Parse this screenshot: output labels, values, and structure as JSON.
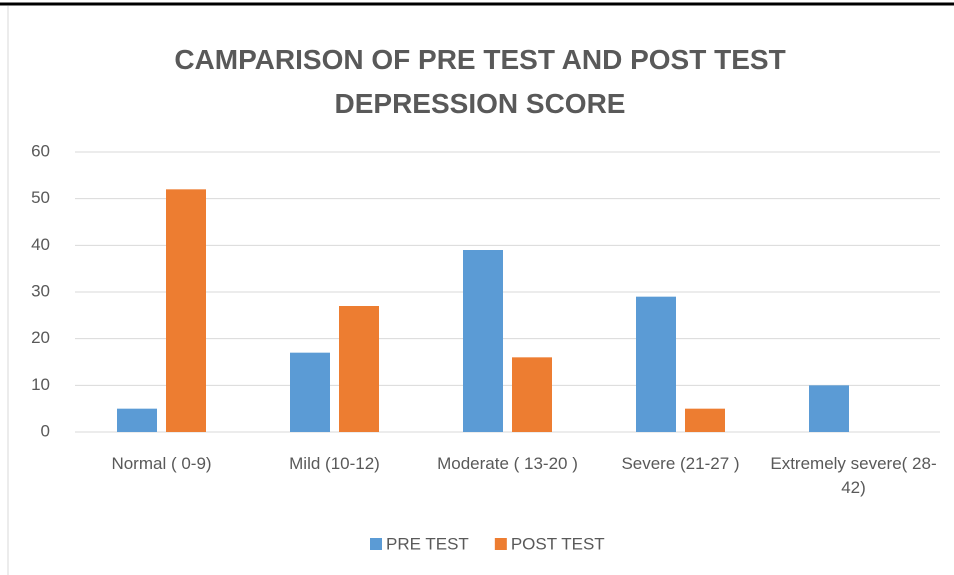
{
  "chart_data": {
    "type": "bar",
    "title": "CAMPARISON OF PRE TEST AND POST TEST DEPRESSION SCORE",
    "categories": [
      "Normal ( 0-9)",
      "Mild (10-12)",
      "Moderate ( 13-20 )",
      "Severe (21-27 )",
      "Extremely severe( 28-42)"
    ],
    "series": [
      {
        "name": "PRE TEST",
        "color": "#5b9bd5",
        "values": [
          5,
          17,
          39,
          29,
          10
        ]
      },
      {
        "name": "POST TEST",
        "color": "#ed7d31",
        "values": [
          52,
          27,
          16,
          5,
          0
        ]
      }
    ],
    "ylim": [
      0,
      60
    ],
    "yticks": [
      0,
      10,
      20,
      30,
      40,
      50,
      60
    ],
    "grid": true,
    "legend": "bottom"
  }
}
